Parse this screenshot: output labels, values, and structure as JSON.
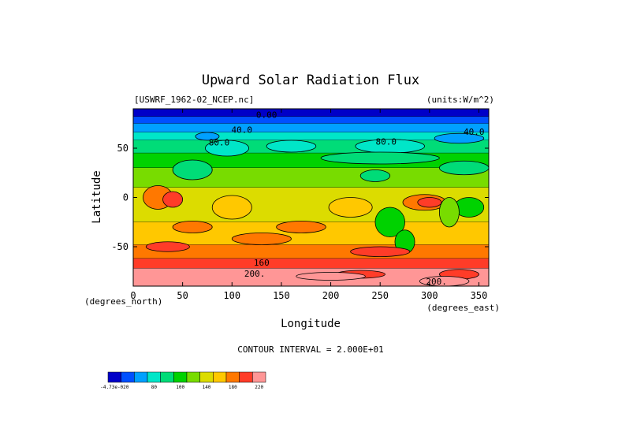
{
  "chart_data": {
    "type": "heatmap",
    "title": "Upward Solar Radiation Flux",
    "subtitle_left": "[USWRF_1962-02_NCEP.nc]",
    "subtitle_right": "(units:W/m^2)",
    "xlabel": "Longitude",
    "ylabel": "Latitude",
    "x_unit_label": "(degrees_east)",
    "y_unit_label": "(degrees_north)",
    "xlim": [
      0,
      360
    ],
    "ylim": [
      -90,
      90
    ],
    "x_ticks": [
      0,
      50,
      100,
      150,
      200,
      250,
      300,
      350
    ],
    "y_ticks": [
      50,
      0,
      -50
    ],
    "contour_interval": "CONTOUR INTERVAL = 2.000E+01",
    "contour_labels": [
      {
        "text": "0.00",
        "lon": 135,
        "lat": 84
      },
      {
        "text": "40.0",
        "lon": 110,
        "lat": 69
      },
      {
        "text": "40.0",
        "lon": 345,
        "lat": 67
      },
      {
        "text": "80.0",
        "lon": 87,
        "lat": 56
      },
      {
        "text": "80.0",
        "lon": 256,
        "lat": 57
      },
      {
        "text": "160",
        "lon": 130,
        "lat": -66
      },
      {
        "text": "200.",
        "lon": 123,
        "lat": -77
      },
      {
        "text": "200.",
        "lon": 307,
        "lat": -85
      }
    ],
    "colorbar": {
      "colors": [
        "#0000c8",
        "#0050ff",
        "#00a0ff",
        "#00e6c8",
        "#00dc78",
        "#00d200",
        "#78dc00",
        "#dcdc00",
        "#ffc800",
        "#ff7800",
        "#ff3c28",
        "#ff9696"
      ],
      "tick_labels": [
        "-4.73e-020",
        "80",
        "100",
        "140",
        "180",
        "220"
      ]
    },
    "bands": [
      {
        "lat_from": 90,
        "lat_to": 82,
        "value": 0
      },
      {
        "lat_from": 82,
        "lat_to": 75,
        "value": 20
      },
      {
        "lat_from": 75,
        "lat_to": 66,
        "value": 40
      },
      {
        "lat_from": 66,
        "lat_to": 58,
        "value": 60
      },
      {
        "lat_from": 58,
        "lat_to": 45,
        "value": 80
      },
      {
        "lat_from": 45,
        "lat_to": 30,
        "value": 100
      },
      {
        "lat_from": 30,
        "lat_to": 10,
        "value": 120
      },
      {
        "lat_from": 10,
        "lat_to": -25,
        "value": 140
      },
      {
        "lat_from": -25,
        "lat_to": -48,
        "value": 160
      },
      {
        "lat_from": -48,
        "lat_to": -62,
        "value": 180
      },
      {
        "lat_from": -62,
        "lat_to": -72,
        "value": 200
      },
      {
        "lat_from": -72,
        "lat_to": -90,
        "value": 220
      }
    ],
    "blobs": [
      {
        "lon": 75,
        "lat": 62,
        "rlon": 12,
        "rlat": 4,
        "value": 40
      },
      {
        "lon": 95,
        "lat": 50,
        "rlon": 22,
        "rlat": 8,
        "value": 60
      },
      {
        "lon": 160,
        "lat": 52,
        "rlon": 25,
        "rlat": 6,
        "value": 60
      },
      {
        "lon": 260,
        "lat": 52,
        "rlon": 35,
        "rlat": 7,
        "value": 60
      },
      {
        "lon": 330,
        "lat": 60,
        "rlon": 25,
        "rlat": 5,
        "value": 40
      },
      {
        "lon": 60,
        "lat": 28,
        "rlon": 20,
        "rlat": 10,
        "value": 80
      },
      {
        "lon": 245,
        "lat": 22,
        "rlon": 15,
        "rlat": 6,
        "value": 80
      },
      {
        "lon": 250,
        "lat": 40,
        "rlon": 60,
        "rlat": 6,
        "value": 80
      },
      {
        "lon": 335,
        "lat": 30,
        "rlon": 25,
        "rlat": 7,
        "value": 80
      },
      {
        "lon": 25,
        "lat": 0,
        "rlon": 15,
        "rlat": 12,
        "value": 180
      },
      {
        "lon": 40,
        "lat": -2,
        "rlon": 10,
        "rlat": 8,
        "value": 200
      },
      {
        "lon": 100,
        "lat": -10,
        "rlon": 20,
        "rlat": 12,
        "value": 160
      },
      {
        "lon": 220,
        "lat": -10,
        "rlon": 22,
        "rlat": 10,
        "value": 160
      },
      {
        "lon": 295,
        "lat": -5,
        "rlon": 22,
        "rlat": 8,
        "value": 180
      },
      {
        "lon": 300,
        "lat": -5,
        "rlon": 12,
        "rlat": 5,
        "value": 200
      },
      {
        "lon": 340,
        "lat": -10,
        "rlon": 15,
        "rlat": 10,
        "value": 100
      },
      {
        "lon": 320,
        "lat": -15,
        "rlon": 10,
        "rlat": 15,
        "value": 120
      },
      {
        "lon": 260,
        "lat": -25,
        "rlon": 15,
        "rlat": 15,
        "value": 100
      },
      {
        "lon": 275,
        "lat": -45,
        "rlon": 10,
        "rlat": 12,
        "value": 100
      },
      {
        "lon": 170,
        "lat": -30,
        "rlon": 25,
        "rlat": 6,
        "value": 180
      },
      {
        "lon": 60,
        "lat": -30,
        "rlon": 20,
        "rlat": 6,
        "value": 180
      },
      {
        "lon": 130,
        "lat": -42,
        "rlon": 30,
        "rlat": 6,
        "value": 180
      },
      {
        "lon": 35,
        "lat": -50,
        "rlon": 22,
        "rlat": 5,
        "value": 200
      },
      {
        "lon": 250,
        "lat": -55,
        "rlon": 30,
        "rlat": 5,
        "value": 200
      },
      {
        "lon": 230,
        "lat": -78,
        "rlon": 25,
        "rlat": 4,
        "value": 200
      },
      {
        "lon": 200,
        "lat": -80,
        "rlon": 35,
        "rlat": 4,
        "value": 220
      },
      {
        "lon": 330,
        "lat": -78,
        "rlon": 20,
        "rlat": 5,
        "value": 200
      },
      {
        "lon": 315,
        "lat": -85,
        "rlon": 25,
        "rlat": 5,
        "value": 220
      }
    ]
  }
}
